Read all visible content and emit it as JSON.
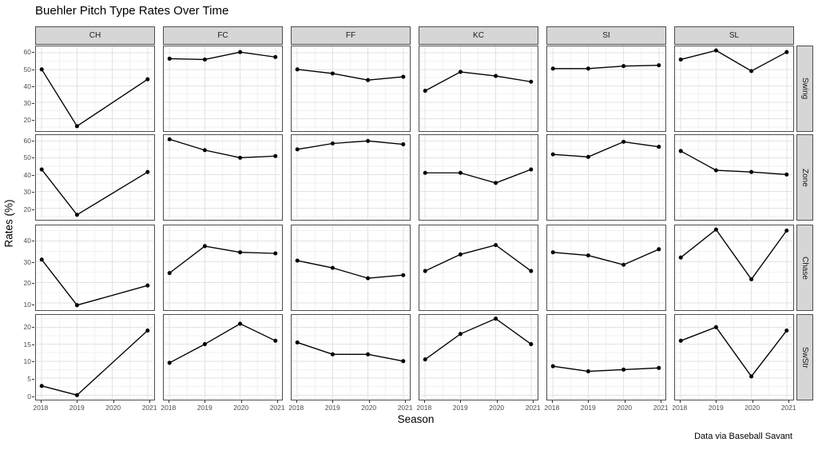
{
  "accent_colors": {
    "strip_fill": "#d6d6d6",
    "panel_border": "#4d4d4d",
    "grid_major": "#e2e2e2",
    "grid_minor": "#f2f2f2",
    "series": "#000000",
    "tick_text": "#4d4d4d"
  },
  "chart_data": {
    "type": "line",
    "title": "Buehler Pitch Type Rates Over Time",
    "xlabel": "Season",
    "ylabel": "Rates (%)",
    "caption": "Data via Baseball Savant",
    "facet_columns": [
      "CH",
      "FC",
      "FF",
      "KC",
      "SI",
      "SL"
    ],
    "facet_rows": [
      "Swing",
      "Zone",
      "Chase",
      "SwStr"
    ],
    "x_ticks": [
      2018,
      2019,
      2020,
      2021
    ],
    "xlim": [
      2017.85,
      2021.15
    ],
    "grid": true,
    "legend": "none",
    "rows": [
      {
        "label": "Swing",
        "y_ticks": [
          20,
          30,
          40,
          50,
          60
        ],
        "ylim": [
          13,
          64
        ],
        "series": [
          {
            "col": "CH",
            "x": [
              2018,
              2019,
              2021
            ],
            "y": [
              50,
              15.5,
              44
            ]
          },
          {
            "col": "FC",
            "x": [
              2018,
              2019,
              2020,
              2021
            ],
            "y": [
              56.5,
              56,
              60.5,
              57.5
            ]
          },
          {
            "col": "FF",
            "x": [
              2018,
              2019,
              2020,
              2021
            ],
            "y": [
              50,
              47.5,
              43.5,
              45.5
            ]
          },
          {
            "col": "KC",
            "x": [
              2018,
              2019,
              2020,
              2021
            ],
            "y": [
              37,
              48.5,
              46,
              42.5
            ]
          },
          {
            "col": "SI",
            "x": [
              2018,
              2019,
              2020,
              2021
            ],
            "y": [
              50.5,
              50.5,
              52,
              52.5
            ]
          },
          {
            "col": "SL",
            "x": [
              2018,
              2019,
              2020,
              2021
            ],
            "y": [
              56,
              61.5,
              49,
              60.5
            ]
          }
        ]
      },
      {
        "label": "Zone",
        "y_ticks": [
          20,
          30,
          40,
          50,
          60
        ],
        "ylim": [
          13.5,
          63.5
        ],
        "series": [
          {
            "col": "CH",
            "x": [
              2018,
              2019,
              2021
            ],
            "y": [
              43,
              16,
              41.5
            ]
          },
          {
            "col": "FC",
            "x": [
              2018,
              2019,
              2020,
              2021
            ],
            "y": [
              61,
              54.5,
              50,
              51
            ]
          },
          {
            "col": "FF",
            "x": [
              2018,
              2019,
              2020,
              2021
            ],
            "y": [
              55,
              58.5,
              60,
              58
            ]
          },
          {
            "col": "KC",
            "x": [
              2018,
              2019,
              2020,
              2021
            ],
            "y": [
              41,
              41,
              35,
              43
            ]
          },
          {
            "col": "SI",
            "x": [
              2018,
              2019,
              2020,
              2021
            ],
            "y": [
              52,
              50.5,
              59.5,
              56.5
            ]
          },
          {
            "col": "SL",
            "x": [
              2018,
              2019,
              2020,
              2021
            ],
            "y": [
              54,
              42.5,
              41.5,
              40
            ]
          }
        ]
      },
      {
        "label": "Chase",
        "y_ticks": [
          10,
          20,
          30,
          40
        ],
        "ylim": [
          7,
          47.5
        ],
        "series": [
          {
            "col": "CH",
            "x": [
              2018,
              2019,
              2021
            ],
            "y": [
              31,
              9,
              18.5
            ]
          },
          {
            "col": "FC",
            "x": [
              2018,
              2019,
              2020,
              2021
            ],
            "y": [
              24.5,
              37.5,
              34.5,
              34
            ]
          },
          {
            "col": "FF",
            "x": [
              2018,
              2019,
              2020,
              2021
            ],
            "y": [
              30.5,
              27,
              22,
              23.5
            ]
          },
          {
            "col": "KC",
            "x": [
              2018,
              2019,
              2020,
              2021
            ],
            "y": [
              25.5,
              33.5,
              38,
              25.5
            ]
          },
          {
            "col": "SI",
            "x": [
              2018,
              2019,
              2020,
              2021
            ],
            "y": [
              34.5,
              33,
              28.5,
              36
            ]
          },
          {
            "col": "SL",
            "x": [
              2018,
              2019,
              2020,
              2021
            ],
            "y": [
              32,
              45.5,
              21.5,
              45
            ]
          }
        ]
      },
      {
        "label": "SwStr",
        "y_ticks": [
          0,
          5,
          10,
          15,
          20
        ],
        "ylim": [
          -1.1,
          23.6
        ],
        "series": [
          {
            "col": "CH",
            "x": [
              2018,
              2019,
              2021
            ],
            "y": [
              2.7,
              0,
              19
            ]
          },
          {
            "col": "FC",
            "x": [
              2018,
              2019,
              2020,
              2021
            ],
            "y": [
              9.5,
              15,
              21,
              16
            ]
          },
          {
            "col": "FF",
            "x": [
              2018,
              2019,
              2020,
              2021
            ],
            "y": [
              15.5,
              12,
              12,
              10
            ]
          },
          {
            "col": "KC",
            "x": [
              2018,
              2019,
              2020,
              2021
            ],
            "y": [
              10.5,
              18,
              22.5,
              15
            ]
          },
          {
            "col": "SI",
            "x": [
              2018,
              2019,
              2020,
              2021
            ],
            "y": [
              8.5,
              7,
              7.5,
              8
            ]
          },
          {
            "col": "SL",
            "x": [
              2018,
              2019,
              2020,
              2021
            ],
            "y": [
              16,
              20,
              5.5,
              19
            ]
          }
        ]
      }
    ]
  }
}
